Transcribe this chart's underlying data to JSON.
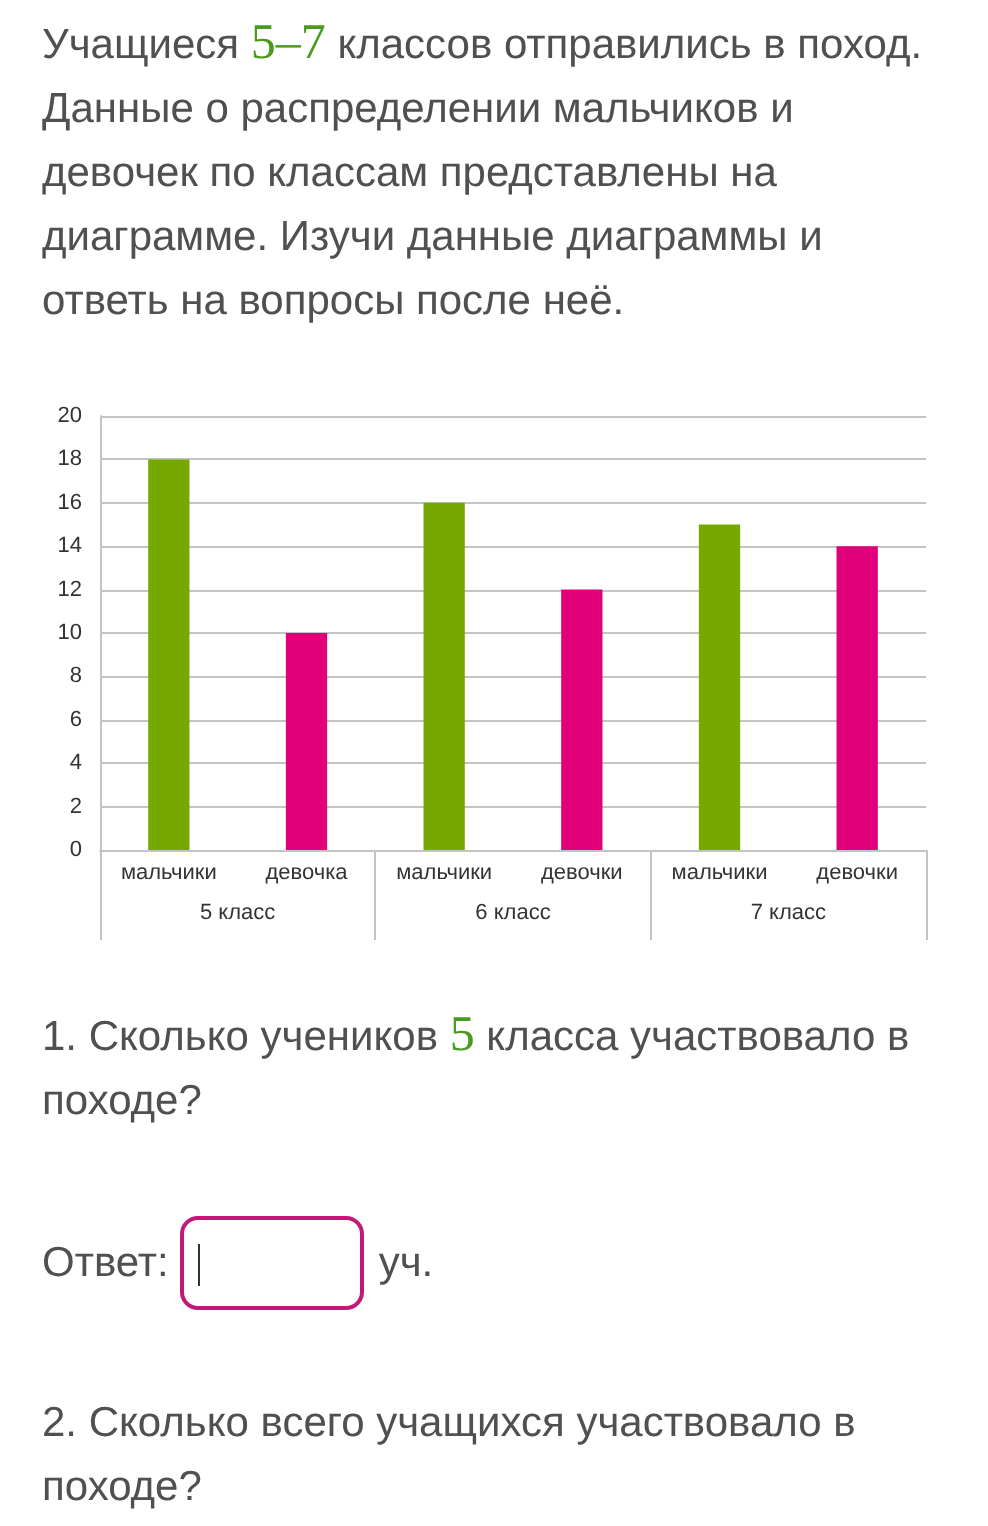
{
  "chart_data": {
    "type": "bar",
    "title": "Учащиеся 5–7 классов отправились в поход. Данные о распределении мальчиков и девочек по классам представлены на диаграмме. Изучи данные диаграммы и ответь на вопросы после неё.",
    "categories": [
      "мальчики",
      "девочка",
      "мальчики",
      "девочки",
      "мальчики",
      "девочки"
    ],
    "values": [
      18,
      10,
      16,
      12,
      15,
      14
    ],
    "colors": [
      "#76a900",
      "#e2007a",
      "#76a900",
      "#e2007a",
      "#76a900",
      "#e2007a"
    ],
    "ylim": [
      0,
      20
    ],
    "yticks": [
      0,
      2,
      4,
      6,
      8,
      10,
      12,
      14,
      16,
      18,
      20
    ],
    "grid": "y",
    "annotations": [
      "5 класс",
      "6 класс",
      "7 класс",
      "1. Сколько учеников 5 класса участвовало в походе?",
      "Ответ:",
      "уч.",
      "2. Сколько всего учащихся участвовало в походе?"
    ]
  }
}
